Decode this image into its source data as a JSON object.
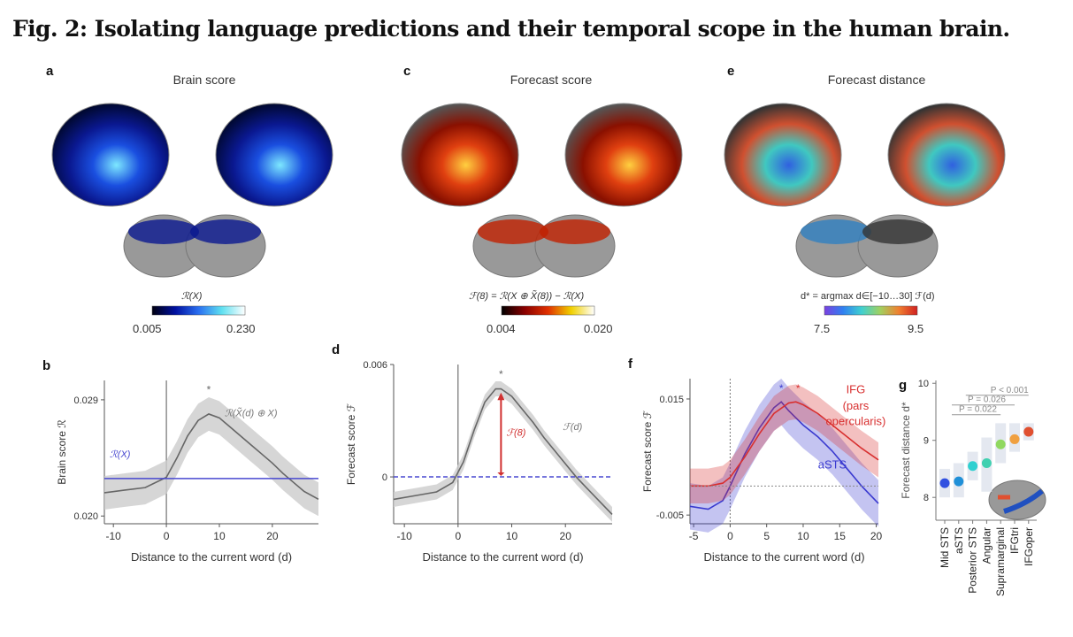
{
  "title": "Fig. 2: Isolating language predictions and their temporal scope in the human brain.",
  "panels": {
    "a": {
      "label": "a",
      "title": "Brain score",
      "cbar_label": "ℛ(X)",
      "cbar_min": "0.005",
      "cbar_max": "0.230",
      "colors": [
        "#000010",
        "#0010a0",
        "#2a6ff0",
        "#5fe0f0",
        "#ffffff"
      ]
    },
    "c": {
      "label": "c",
      "title": "Forecast score",
      "cbar_label": "ℱ(8) = ℛ(X ⊕ X̃(8)) − ℛ(X)",
      "cbar_min": "0.004",
      "cbar_max": "0.020",
      "colors": [
        "#000000",
        "#8a0000",
        "#e03000",
        "#f0d000",
        "#ffffff"
      ]
    },
    "e": {
      "label": "e",
      "title": "Forecast distance",
      "cbar_label": "d* = argmax d∈[−10…30] ℱ(d)",
      "cbar_min": "7.5",
      "cbar_max": "9.5",
      "colors": [
        "#7a40e0",
        "#3080f0",
        "#40d0d0",
        "#a0d060",
        "#f08030",
        "#d02020"
      ]
    }
  },
  "chart_data": [
    {
      "id": "b",
      "label": "b",
      "type": "line",
      "xlabel": "Distance to the current word (d)",
      "ylabel": "Brain score ℛ",
      "xlim": [
        -11.7,
        28.7
      ],
      "ylim": [
        0.0194,
        0.0305
      ],
      "xticks": [
        "-10",
        "0",
        "10",
        "20"
      ],
      "yticks": [
        "0.020",
        "0.029"
      ],
      "series": [
        {
          "name": "ℛ(X̃(d) ⊕ X)",
          "x": [
            -11.7,
            -8,
            -4,
            0,
            2,
            4,
            6,
            8,
            10,
            12,
            14,
            16,
            18,
            20,
            22,
            24,
            26,
            28.7
          ],
          "y": [
            0.0218,
            0.022,
            0.0222,
            0.023,
            0.0245,
            0.0262,
            0.0274,
            0.0279,
            0.0276,
            0.0269,
            0.0262,
            0.0255,
            0.0248,
            0.0241,
            0.0233,
            0.0226,
            0.0219,
            0.0213
          ],
          "band": 0.0013
        }
      ],
      "hline": {
        "name": "ℛ(X)",
        "y": 0.0229
      },
      "star_x": 8,
      "star": "*"
    },
    {
      "id": "d",
      "label": "d",
      "type": "line",
      "xlabel": "Distance to the current word (d)",
      "ylabel": "Forecast score ℱ",
      "xlim": [
        -12,
        28.7
      ],
      "ylim": [
        -0.0025,
        0.006
      ],
      "xticks": [
        "-10",
        "0",
        "10",
        "20"
      ],
      "yticks": [
        "0",
        "0.006"
      ],
      "series": [
        {
          "name": "ℱ(d)",
          "x": [
            -12,
            -8,
            -4,
            -1,
            1,
            3,
            5,
            7,
            8,
            10,
            12,
            14,
            16,
            18,
            20,
            22,
            24,
            26,
            28.7
          ],
          "y": [
            -0.0012,
            -0.001,
            -0.0008,
            -0.0003,
            0.0008,
            0.0025,
            0.004,
            0.0047,
            0.0047,
            0.0043,
            0.0036,
            0.0029,
            0.0021,
            0.0014,
            0.0007,
            0.0,
            -0.0006,
            -0.0012,
            -0.002
          ],
          "band": 0.0004
        }
      ],
      "hline": {
        "name": "0",
        "y": 0
      },
      "arrow_label": "ℱ(8)",
      "star_x": 8,
      "star": "*"
    },
    {
      "id": "f",
      "label": "f",
      "type": "line",
      "xlabel": "Distance to the current word (d)",
      "ylabel": "Forecast score ℱ",
      "xlim": [
        -5.5,
        20.3
      ],
      "ylim": [
        -0.0065,
        0.0185
      ],
      "xticks": [
        "-5",
        "0",
        "5",
        "10",
        "15",
        "20"
      ],
      "yticks": [
        "-0.005",
        "0.015"
      ],
      "series": [
        {
          "name": "aSTS",
          "color": "#3a3ad0",
          "x": [
            -5.5,
            -3,
            -1,
            0,
            2,
            4,
            6,
            7,
            8,
            10,
            12,
            14,
            16,
            18,
            20.3
          ],
          "y": [
            -0.0035,
            -0.004,
            -0.0025,
            0.0,
            0.0055,
            0.01,
            0.0135,
            0.0145,
            0.013,
            0.0105,
            0.0085,
            0.006,
            0.003,
            0.0,
            -0.003
          ],
          "band": 0.004
        },
        {
          "name": "IFG (pars opercularis)",
          "color": "#d83030",
          "x": [
            -5.5,
            -3,
            -1,
            0,
            2,
            4,
            6,
            8,
            9,
            10,
            12,
            14,
            16,
            18,
            20.3
          ],
          "y": [
            0.0,
            0.0,
            0.0005,
            0.0015,
            0.005,
            0.009,
            0.0125,
            0.0143,
            0.0145,
            0.014,
            0.0125,
            0.0105,
            0.0085,
            0.0065,
            0.0045
          ],
          "band": 0.003
        }
      ],
      "hline": {
        "name": "0",
        "y": 0
      },
      "star_x": [
        7,
        9.3
      ],
      "star": "*"
    },
    {
      "id": "g",
      "label": "g",
      "type": "scatter",
      "ylabel": "Forecast distance d*",
      "ylim": [
        7.6,
        10.05
      ],
      "yticks": [
        "8",
        "9",
        "10"
      ],
      "categories": [
        "Mid STS",
        "aSTS",
        "Posterior STS",
        "Angular",
        "Supramarginal",
        "IFGtri",
        "IFGoper"
      ],
      "values": [
        8.25,
        8.28,
        8.55,
        8.6,
        8.93,
        9.02,
        9.15
      ],
      "box_low": [
        8.0,
        8.0,
        8.3,
        8.1,
        8.6,
        8.8,
        9.0
      ],
      "box_high": [
        8.5,
        8.6,
        8.8,
        9.05,
        9.3,
        9.3,
        9.3
      ],
      "colors": [
        "#3050e0",
        "#2090d8",
        "#30d0d0",
        "#40d0b0",
        "#90d860",
        "#f0a040",
        "#e05030"
      ],
      "pvalues": [
        {
          "text": "P = 0.022",
          "from": 1,
          "to": 4
        },
        {
          "text": "P = 0.026",
          "from": 1,
          "to": 5
        },
        {
          "text": "P < 0.001",
          "from": 2,
          "to": 6
        }
      ]
    }
  ]
}
